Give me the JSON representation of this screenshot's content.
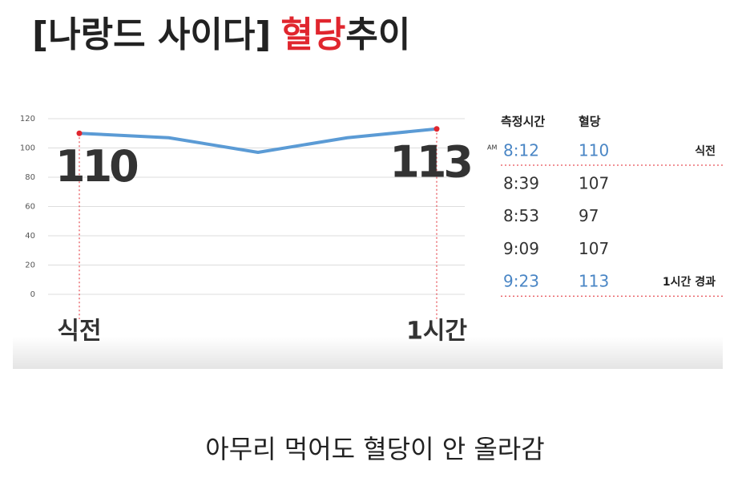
{
  "header": {
    "title_prefix": "[나랑드 사이다]",
    "title_highlight": "혈당",
    "title_suffix": "추이"
  },
  "chart_data": {
    "type": "line",
    "categories": [
      "식전",
      null,
      null,
      null,
      "1시간"
    ],
    "series": [
      {
        "name": "혈당",
        "color": "#5b9bd5",
        "values": [
          110,
          107,
          97,
          107,
          113
        ]
      }
    ],
    "marker_color": "#e0262e",
    "ylim": [
      0,
      120
    ],
    "yticks": [
      0,
      20,
      40,
      60,
      80,
      100,
      120
    ],
    "grid": true
  },
  "table": {
    "am": "AM",
    "headers": [
      "측정시간",
      "혈당"
    ],
    "rows": [
      {
        "time": "8:12",
        "glucose": 110,
        "note": "식전",
        "highlight": true
      },
      {
        "time": "8:39",
        "glucose": 107
      },
      {
        "time": "8:53",
        "glucose": 97
      },
      {
        "time": "9:09",
        "glucose": 107
      },
      {
        "time": "9:23",
        "glucose": 113,
        "note": "1시간 경과",
        "highlight": true
      }
    ]
  },
  "caption": "아무리 먹어도 혈당이 안 올라감"
}
